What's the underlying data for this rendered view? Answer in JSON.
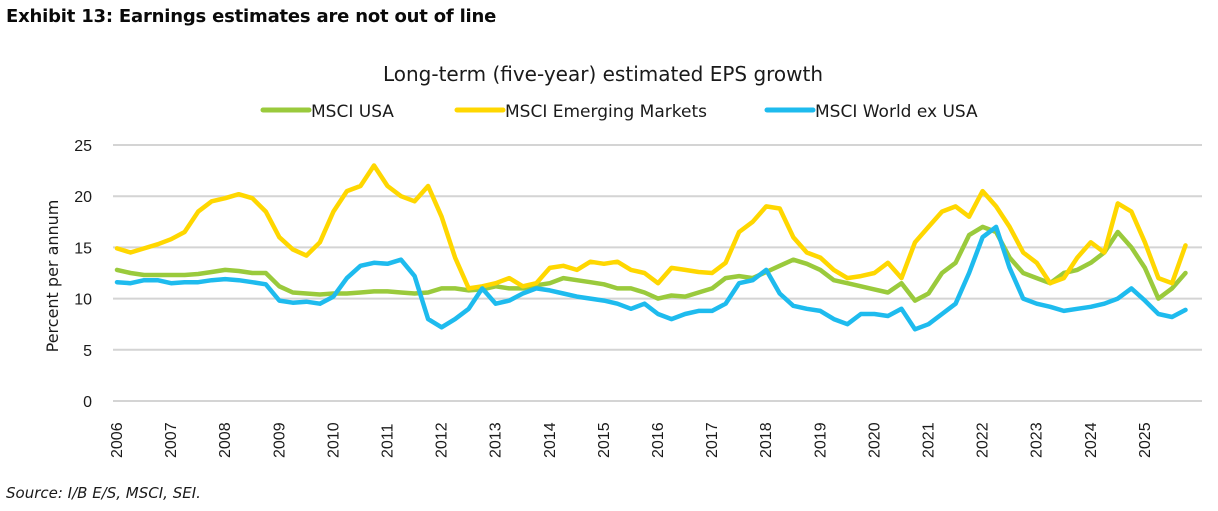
{
  "exhibit_title": "Exhibit 13: Earnings estimates are not out of line",
  "source": "Source: I/B E/S, MSCI, SEI.",
  "chart_data": {
    "type": "line",
    "title": "Long-term (five-year) estimated EPS growth",
    "xlabel": "",
    "ylabel": "Percent per annum",
    "ylim": [
      0,
      25
    ],
    "yticks": [
      0,
      5,
      10,
      15,
      20,
      25
    ],
    "xlim": [
      2006,
      2026
    ],
    "xticks": [
      "2006",
      "2007",
      "2008",
      "2009",
      "2010",
      "2011",
      "2012",
      "2013",
      "2014",
      "2015",
      "2016",
      "2017",
      "2018",
      "2019",
      "2020",
      "2021",
      "2022",
      "2023",
      "2024",
      "2025"
    ],
    "grid": true,
    "legend_position": "top-center",
    "x_frequency": "quarterly",
    "x_start": 2006.0,
    "x_step": 0.25,
    "series": [
      {
        "name": "MSCI USA",
        "color": "#9ACA3C",
        "values": [
          12.8,
          12.5,
          12.3,
          12.3,
          12.3,
          12.3,
          12.4,
          12.6,
          12.8,
          12.7,
          12.5,
          12.5,
          11.2,
          10.6,
          10.5,
          10.4,
          10.5,
          10.5,
          10.6,
          10.7,
          10.7,
          10.6,
          10.5,
          10.6,
          11.0,
          11.0,
          10.8,
          10.9,
          11.2,
          11.0,
          11.0,
          11.3,
          11.5,
          12.0,
          11.8,
          11.6,
          11.4,
          11.0,
          11.0,
          10.6,
          10.0,
          10.3,
          10.2,
          10.6,
          11.0,
          12.0,
          12.2,
          12.0,
          12.6,
          13.2,
          13.8,
          13.4,
          12.8,
          11.8,
          11.5,
          11.2,
          10.9,
          10.6,
          11.5,
          9.8,
          10.5,
          12.5,
          13.5,
          16.2,
          17.0,
          16.5,
          14.0,
          12.5,
          12.0,
          11.5,
          12.5,
          12.8,
          13.5,
          14.5,
          16.5,
          15.0,
          13.0,
          10.0,
          11.0,
          12.5
        ]
      },
      {
        "name": "MSCI Emerging Markets",
        "color": "#FFD700",
        "values": [
          14.9,
          14.5,
          14.9,
          15.3,
          15.8,
          16.5,
          18.5,
          19.5,
          19.8,
          20.2,
          19.8,
          18.5,
          16.0,
          14.8,
          14.2,
          15.5,
          18.5,
          20.5,
          21.0,
          23.0,
          21.0,
          20.0,
          19.5,
          21.0,
          18.0,
          14.0,
          11.0,
          11.2,
          11.5,
          12.0,
          11.2,
          11.5,
          13.0,
          13.2,
          12.8,
          13.6,
          13.4,
          13.6,
          12.8,
          12.5,
          11.5,
          13.0,
          12.8,
          12.6,
          12.5,
          13.5,
          16.5,
          17.5,
          19.0,
          18.8,
          16.0,
          14.5,
          14.0,
          12.8,
          12.0,
          12.2,
          12.5,
          13.5,
          12.0,
          15.5,
          17.0,
          18.5,
          19.0,
          18.0,
          20.5,
          19.0,
          17.0,
          14.5,
          13.5,
          11.5,
          12.0,
          14.0,
          15.5,
          14.5,
          19.3,
          18.5,
          15.5,
          12.0,
          11.5,
          15.2
        ]
      },
      {
        "name": "MSCI World ex USA",
        "color": "#1EBBEE",
        "values": [
          11.6,
          11.5,
          11.8,
          11.8,
          11.5,
          11.6,
          11.6,
          11.8,
          11.9,
          11.8,
          11.6,
          11.4,
          9.8,
          9.6,
          9.7,
          9.5,
          10.2,
          12.0,
          13.2,
          13.5,
          13.4,
          13.8,
          12.2,
          8.0,
          7.2,
          8.0,
          9.0,
          11.0,
          9.5,
          9.8,
          10.5,
          11.0,
          10.8,
          10.5,
          10.2,
          10.0,
          9.8,
          9.5,
          9.0,
          9.5,
          8.5,
          8.0,
          8.5,
          8.8,
          8.8,
          9.5,
          11.5,
          11.8,
          12.8,
          10.5,
          9.3,
          9.0,
          8.8,
          8.0,
          7.5,
          8.5,
          8.5,
          8.3,
          9.0,
          7.0,
          7.5,
          8.5,
          9.5,
          12.5,
          16.0,
          17.0,
          13.0,
          10.0,
          9.5,
          9.2,
          8.8,
          9.0,
          9.2,
          9.5,
          10.0,
          11.0,
          9.8,
          8.5,
          8.2,
          8.9
        ]
      }
    ]
  }
}
